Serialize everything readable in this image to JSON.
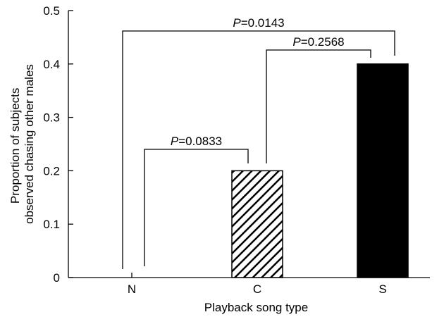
{
  "chart_data": {
    "type": "bar",
    "title": "",
    "xlabel": "Playback song type",
    "ylabel_lines": [
      "Proportion of subjects",
      "observed chasing other males"
    ],
    "categories": [
      "N",
      "C",
      "S"
    ],
    "values": [
      0,
      0.2,
      0.4
    ],
    "bar_styles": [
      "none",
      "hatched",
      "solid"
    ],
    "ylim": [
      0,
      0.5
    ],
    "yticks": [
      "0",
      "0.1",
      "0.2",
      "0.3",
      "0.4",
      "0.5"
    ],
    "grid": false,
    "comparisons": [
      {
        "from": "N",
        "to": "C",
        "p_prefix": "P",
        "p_value": "=0.0833"
      },
      {
        "from": "C",
        "to": "S",
        "p_prefix": "P",
        "p_value": "=0.2568"
      },
      {
        "from": "N",
        "to": "S",
        "p_prefix": "P",
        "p_value": "=0.0143"
      }
    ]
  }
}
